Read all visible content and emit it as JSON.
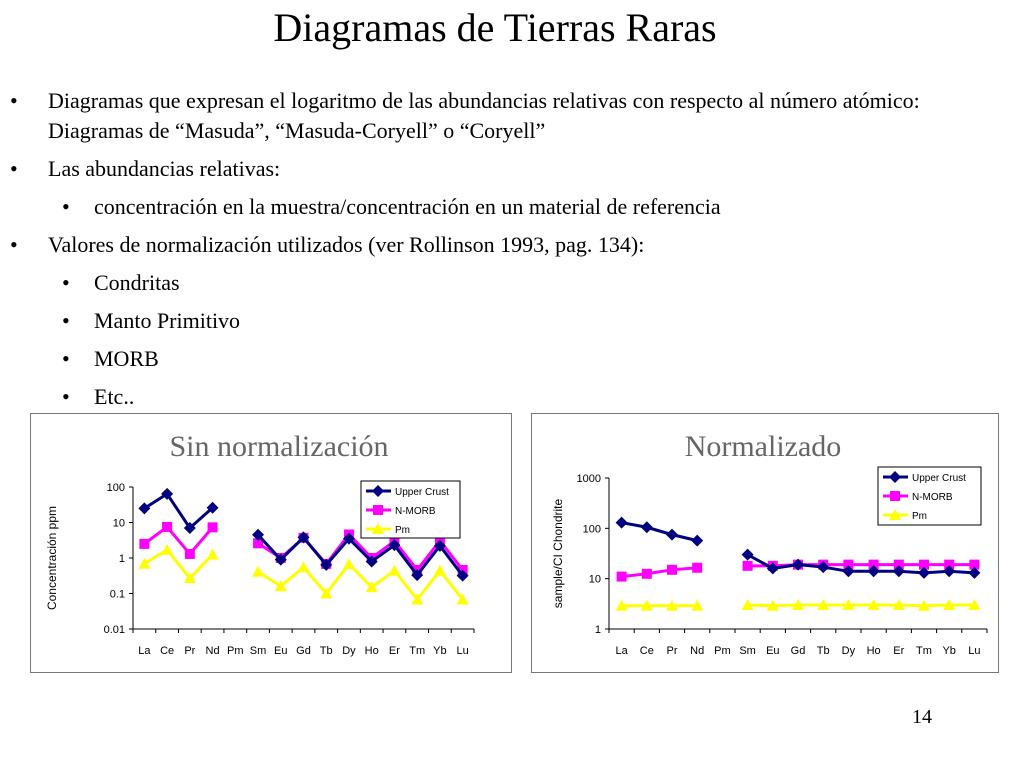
{
  "slide": {
    "title": "Diagramas de Tierras Raras",
    "page_number": "14",
    "bullets": [
      {
        "level": 1,
        "text": "Diagramas que expresan el logaritmo de las abundancias relativas con respecto al número atómico: Diagramas de “Masuda”, “Masuda-Coryell” o “Coryell”"
      },
      {
        "level": 1,
        "text": "Las abundancias relativas:"
      },
      {
        "level": 2,
        "text": "concentración en la muestra/concentración en un material de referencia"
      },
      {
        "level": 1,
        "text": "Valores de normalización utilizados (ver Rollinson 1993, pag. 134):"
      },
      {
        "level": 2,
        "text": "Condritas"
      },
      {
        "level": 2,
        "text": "Manto Primitivo"
      },
      {
        "level": 2,
        "text": "MORB"
      },
      {
        "level": 2,
        "text": "Etc.."
      }
    ],
    "bullet_glyph": "•"
  },
  "chart_data": [
    {
      "type": "line",
      "title": "Sin normalización",
      "ylabel": "Concentración ppm",
      "xlabel": "",
      "yscale": "log",
      "ylim": [
        0.01,
        100
      ],
      "yticks": [
        "0.01",
        "0.1",
        "1",
        "10",
        "100"
      ],
      "categories": [
        "La",
        "Ce",
        "Pr",
        "Nd",
        "Pm",
        "Sm",
        "Eu",
        "Gd",
        "Tb",
        "Dy",
        "Ho",
        "Er",
        "Tm",
        "Yb",
        "Lu"
      ],
      "legend_position": "top-right",
      "series": [
        {
          "name": "Upper Crust",
          "color": "#000080",
          "marker": "diamond",
          "values": [
            25,
            64,
            7,
            26,
            null,
            4.5,
            0.9,
            3.8,
            0.64,
            3.5,
            0.8,
            2.3,
            0.33,
            2.2,
            0.32
          ]
        },
        {
          "name": "N-MORB",
          "color": "#ff00ff",
          "marker": "square",
          "values": [
            2.5,
            7.5,
            1.3,
            7.3,
            null,
            2.6,
            1.0,
            3.7,
            0.68,
            4.6,
            1.0,
            3.0,
            0.46,
            3.05,
            0.46
          ]
        },
        {
          "name": "Pm",
          "color": "#ffff00",
          "marker": "triangle",
          "values": [
            0.69,
            1.7,
            0.27,
            1.25,
            null,
            0.41,
            0.16,
            0.55,
            0.1,
            0.67,
            0.15,
            0.44,
            0.068,
            0.44,
            0.068
          ]
        }
      ]
    },
    {
      "type": "line",
      "title": "Normalizado",
      "ylabel": "sample/CI Chondrite",
      "xlabel": "",
      "yscale": "log",
      "ylim": [
        1,
        1000
      ],
      "yticks": [
        "1",
        "10",
        "100",
        "1000"
      ],
      "categories": [
        "La",
        "Ce",
        "Pr",
        "Nd",
        "Pm",
        "Sm",
        "Eu",
        "Gd",
        "Tb",
        "Dy",
        "Ho",
        "Er",
        "Tm",
        "Yb",
        "Lu"
      ],
      "legend_position": "top-right",
      "series": [
        {
          "name": "Upper Crust",
          "color": "#000080",
          "marker": "diamond",
          "values": [
            130,
            105,
            75,
            57,
            null,
            30,
            16,
            19,
            17,
            14,
            14,
            14,
            13,
            14,
            13
          ]
        },
        {
          "name": "N-MORB",
          "color": "#ff00ff",
          "marker": "square",
          "values": [
            11,
            12.5,
            15,
            16.5,
            null,
            18,
            18,
            19,
            19,
            19,
            19,
            19,
            19,
            19,
            19
          ]
        },
        {
          "name": "Pm",
          "color": "#ffff00",
          "marker": "triangle",
          "values": [
            2.9,
            2.9,
            2.9,
            2.9,
            null,
            3.0,
            2.9,
            3.0,
            3.0,
            3.0,
            3.0,
            3.0,
            2.9,
            3.0,
            3.0
          ]
        }
      ]
    }
  ]
}
